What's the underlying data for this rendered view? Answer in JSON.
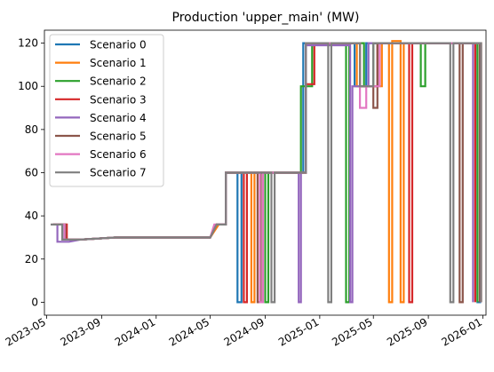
{
  "chart_data": {
    "type": "line",
    "title": "Production 'upper_main' (MW)",
    "xlabel": "",
    "ylabel": "",
    "xlim": [
      "2023-04-26",
      "2026-01-08"
    ],
    "ylim": [
      -6,
      126
    ],
    "x_ticks": [
      "2023-05-01",
      "2023-09-01",
      "2024-01-01",
      "2024-05-01",
      "2024-09-01",
      "2025-01-01",
      "2025-05-01",
      "2025-09-01",
      "2026-01-01"
    ],
    "x_tick_labels": [
      "2023-05",
      "2023-09",
      "2024-01",
      "2024-05",
      "2024-09",
      "2025-01",
      "2025-05",
      "2025-09",
      "2026-01"
    ],
    "y_ticks": [
      0,
      20,
      40,
      60,
      80,
      100,
      120
    ],
    "grid": false,
    "legend_position": "upper-left",
    "series": [
      {
        "name": "Scenario 0",
        "color": "#1f77b4",
        "points": [
          [
            "2023-05-15",
            36
          ],
          [
            "2023-06-05",
            36
          ],
          [
            "2023-06-05",
            29
          ],
          [
            "2023-06-20",
            29
          ],
          [
            "2023-07-15",
            29
          ],
          [
            "2023-10-01",
            30
          ],
          [
            "2024-05-01",
            30
          ],
          [
            "2024-05-15",
            36
          ],
          [
            "2024-06-05",
            36
          ],
          [
            "2024-06-05",
            60
          ],
          [
            "2024-07-01",
            60
          ],
          [
            "2024-07-01",
            0
          ],
          [
            "2024-07-10",
            0
          ],
          [
            "2024-07-10",
            60
          ],
          [
            "2024-11-20",
            60
          ],
          [
            "2024-11-25",
            60
          ],
          [
            "2024-11-25",
            120
          ],
          [
            "2025-03-20",
            120
          ],
          [
            "2025-03-20",
            100
          ],
          [
            "2025-04-15",
            100
          ],
          [
            "2025-04-15",
            120
          ],
          [
            "2025-12-20",
            120
          ],
          [
            "2025-12-20",
            0
          ],
          [
            "2025-12-28",
            0
          ]
        ]
      },
      {
        "name": "Scenario 1",
        "color": "#ff7f0e",
        "points": [
          [
            "2023-05-15",
            36
          ],
          [
            "2023-06-12",
            36
          ],
          [
            "2023-06-12",
            29
          ],
          [
            "2023-07-15",
            29
          ],
          [
            "2023-10-01",
            30
          ],
          [
            "2024-05-01",
            30
          ],
          [
            "2024-05-20",
            36
          ],
          [
            "2024-06-05",
            36
          ],
          [
            "2024-06-05",
            60
          ],
          [
            "2024-08-01",
            60
          ],
          [
            "2024-08-01",
            0
          ],
          [
            "2024-08-08",
            0
          ],
          [
            "2024-08-08",
            60
          ],
          [
            "2024-12-01",
            60
          ],
          [
            "2024-12-01",
            120
          ],
          [
            "2025-03-25",
            120
          ],
          [
            "2025-03-25",
            100
          ],
          [
            "2025-05-20",
            100
          ],
          [
            "2025-05-20",
            120
          ],
          [
            "2025-06-05",
            120
          ],
          [
            "2025-06-05",
            0
          ],
          [
            "2025-06-12",
            0
          ],
          [
            "2025-06-12",
            121
          ],
          [
            "2025-07-01",
            121
          ],
          [
            "2025-07-01",
            0
          ],
          [
            "2025-07-08",
            0
          ],
          [
            "2025-07-08",
            120
          ],
          [
            "2025-12-28",
            120
          ],
          [
            "2025-12-28",
            0
          ]
        ]
      },
      {
        "name": "Scenario 2",
        "color": "#2ca02c",
        "points": [
          [
            "2023-05-15",
            36
          ],
          [
            "2023-06-10",
            36
          ],
          [
            "2023-06-10",
            29
          ],
          [
            "2023-07-15",
            29
          ],
          [
            "2023-10-01",
            30
          ],
          [
            "2024-05-01",
            30
          ],
          [
            "2024-05-15",
            36
          ],
          [
            "2024-06-05",
            36
          ],
          [
            "2024-06-05",
            60
          ],
          [
            "2024-09-01",
            60
          ],
          [
            "2024-09-01",
            0
          ],
          [
            "2024-09-08",
            0
          ],
          [
            "2024-09-08",
            60
          ],
          [
            "2024-11-20",
            60
          ],
          [
            "2024-11-20",
            100
          ],
          [
            "2024-12-15",
            100
          ],
          [
            "2024-12-15",
            120
          ],
          [
            "2025-03-01",
            120
          ],
          [
            "2025-03-01",
            0
          ],
          [
            "2025-03-08",
            0
          ],
          [
            "2025-03-08",
            120
          ],
          [
            "2025-04-10",
            120
          ],
          [
            "2025-04-10",
            100
          ],
          [
            "2025-05-01",
            100
          ],
          [
            "2025-05-01",
            120
          ],
          [
            "2025-08-15",
            120
          ],
          [
            "2025-08-15",
            100
          ],
          [
            "2025-08-25",
            100
          ],
          [
            "2025-08-25",
            120
          ],
          [
            "2025-12-20",
            120
          ],
          [
            "2025-12-20",
            0
          ]
        ]
      },
      {
        "name": "Scenario 3",
        "color": "#d62728",
        "points": [
          [
            "2023-05-15",
            36
          ],
          [
            "2023-06-15",
            36
          ],
          [
            "2023-06-15",
            29
          ],
          [
            "2023-07-15",
            29
          ],
          [
            "2023-10-01",
            30
          ],
          [
            "2024-05-01",
            30
          ],
          [
            "2024-05-15",
            36
          ],
          [
            "2024-06-05",
            36
          ],
          [
            "2024-06-05",
            60
          ],
          [
            "2024-07-15",
            60
          ],
          [
            "2024-07-15",
            0
          ],
          [
            "2024-07-22",
            0
          ],
          [
            "2024-07-22",
            60
          ],
          [
            "2024-12-01",
            60
          ],
          [
            "2024-12-01",
            101
          ],
          [
            "2024-12-20",
            101
          ],
          [
            "2024-12-20",
            120
          ],
          [
            "2025-04-01",
            120
          ],
          [
            "2025-04-01",
            100
          ],
          [
            "2025-05-10",
            100
          ],
          [
            "2025-05-10",
            120
          ],
          [
            "2025-07-20",
            120
          ],
          [
            "2025-07-20",
            0
          ],
          [
            "2025-07-27",
            0
          ],
          [
            "2025-07-27",
            120
          ],
          [
            "2025-12-15",
            120
          ],
          [
            "2025-12-15",
            0
          ]
        ]
      },
      {
        "name": "Scenario 4",
        "color": "#9467bd",
        "points": [
          [
            "2023-05-20",
            36
          ],
          [
            "2023-05-25",
            36
          ],
          [
            "2023-05-25",
            28
          ],
          [
            "2023-06-20",
            28
          ],
          [
            "2023-07-15",
            29
          ],
          [
            "2023-10-01",
            30
          ],
          [
            "2024-05-01",
            30
          ],
          [
            "2024-05-15",
            36
          ],
          [
            "2024-06-05",
            36
          ],
          [
            "2024-06-05",
            60
          ],
          [
            "2024-11-15",
            60
          ],
          [
            "2024-11-15",
            0
          ],
          [
            "2024-11-20",
            0
          ],
          [
            "2024-11-20",
            60
          ],
          [
            "2024-12-01",
            60
          ],
          [
            "2024-12-01",
            119
          ],
          [
            "2025-03-10",
            119
          ],
          [
            "2025-03-10",
            0
          ],
          [
            "2025-03-15",
            0
          ],
          [
            "2025-03-15",
            100
          ],
          [
            "2025-04-20",
            100
          ],
          [
            "2025-04-20",
            120
          ],
          [
            "2025-12-10",
            120
          ],
          [
            "2025-12-10",
            0
          ]
        ]
      },
      {
        "name": "Scenario 5",
        "color": "#8c564b",
        "points": [
          [
            "2023-05-15",
            36
          ],
          [
            "2023-06-12",
            36
          ],
          [
            "2023-06-12",
            29
          ],
          [
            "2023-07-15",
            29
          ],
          [
            "2023-10-01",
            30
          ],
          [
            "2024-05-01",
            30
          ],
          [
            "2024-05-15",
            36
          ],
          [
            "2024-06-05",
            36
          ],
          [
            "2024-06-05",
            60
          ],
          [
            "2024-08-15",
            60
          ],
          [
            "2024-08-15",
            0
          ],
          [
            "2024-08-22",
            0
          ],
          [
            "2024-08-22",
            60
          ],
          [
            "2024-12-01",
            60
          ],
          [
            "2024-12-01",
            120
          ],
          [
            "2025-04-01",
            120
          ],
          [
            "2025-04-01",
            100
          ],
          [
            "2025-05-01",
            100
          ],
          [
            "2025-05-01",
            90
          ],
          [
            "2025-05-10",
            90
          ],
          [
            "2025-05-10",
            120
          ],
          [
            "2025-11-10",
            120
          ],
          [
            "2025-11-10",
            0
          ],
          [
            "2025-11-17",
            0
          ],
          [
            "2025-11-17",
            120
          ],
          [
            "2025-12-25",
            120
          ],
          [
            "2025-12-25",
            0
          ]
        ]
      },
      {
        "name": "Scenario 6",
        "color": "#e377c2",
        "points": [
          [
            "2023-05-15",
            36
          ],
          [
            "2023-06-10",
            36
          ],
          [
            "2023-06-10",
            29
          ],
          [
            "2023-07-15",
            29
          ],
          [
            "2023-10-01",
            30
          ],
          [
            "2024-05-01",
            30
          ],
          [
            "2024-05-10",
            36
          ],
          [
            "2024-06-05",
            36
          ],
          [
            "2024-06-05",
            60
          ],
          [
            "2024-08-20",
            60
          ],
          [
            "2024-08-20",
            0
          ],
          [
            "2024-08-27",
            0
          ],
          [
            "2024-08-27",
            60
          ],
          [
            "2024-12-01",
            60
          ],
          [
            "2024-12-01",
            120
          ],
          [
            "2025-04-01",
            120
          ],
          [
            "2025-04-01",
            90
          ],
          [
            "2025-04-15",
            90
          ],
          [
            "2025-04-15",
            100
          ],
          [
            "2025-05-15",
            100
          ],
          [
            "2025-05-15",
            120
          ],
          [
            "2025-12-28",
            120
          ],
          [
            "2025-12-28",
            0
          ]
        ]
      },
      {
        "name": "Scenario 7",
        "color": "#7f7f7f",
        "points": [
          [
            "2023-05-10",
            36
          ],
          [
            "2023-06-05",
            36
          ],
          [
            "2023-06-05",
            29
          ],
          [
            "2023-07-15",
            29
          ],
          [
            "2023-10-01",
            30
          ],
          [
            "2024-05-01",
            30
          ],
          [
            "2024-05-15",
            36
          ],
          [
            "2024-06-05",
            36
          ],
          [
            "2024-06-05",
            60
          ],
          [
            "2024-09-15",
            60
          ],
          [
            "2024-09-15",
            0
          ],
          [
            "2024-09-22",
            0
          ],
          [
            "2024-09-22",
            60
          ],
          [
            "2024-12-01",
            60
          ],
          [
            "2024-12-01",
            120
          ],
          [
            "2025-01-20",
            120
          ],
          [
            "2025-01-20",
            0
          ],
          [
            "2025-01-27",
            0
          ],
          [
            "2025-01-27",
            120
          ],
          [
            "2025-04-01",
            120
          ],
          [
            "2025-04-01",
            100
          ],
          [
            "2025-05-01",
            100
          ],
          [
            "2025-05-01",
            120
          ],
          [
            "2025-10-20",
            120
          ],
          [
            "2025-10-20",
            0
          ],
          [
            "2025-10-27",
            0
          ],
          [
            "2025-10-27",
            120
          ],
          [
            "2025-12-28",
            120
          ],
          [
            "2025-12-28",
            0
          ]
        ]
      }
    ]
  }
}
